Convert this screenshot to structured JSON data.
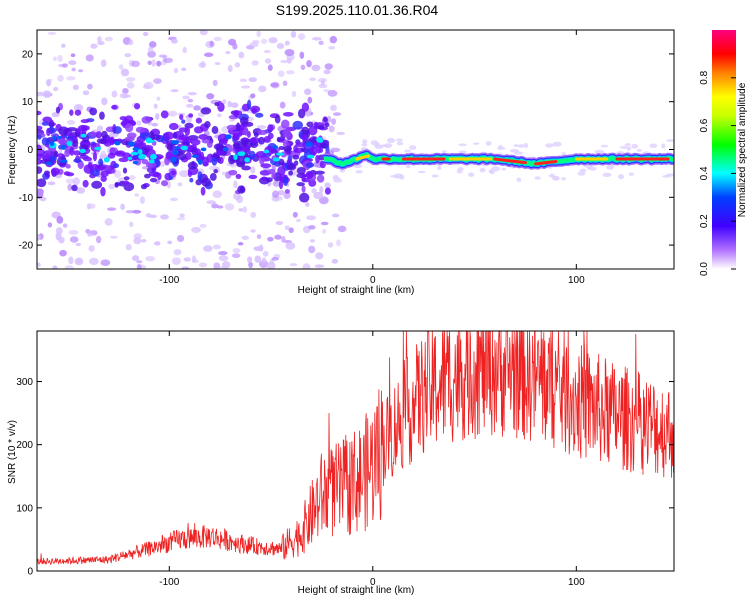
{
  "title": "S199.2025.110.01.36.R04",
  "chart_data": [
    {
      "type": "heatmap",
      "xlabel": "Height of straight line (km)",
      "ylabel": "Frequency (Hz)",
      "xlim": [
        -165,
        148
      ],
      "ylim": [
        -25,
        25
      ],
      "x_ticks": [
        -100,
        0,
        100
      ],
      "y_ticks": [
        -20,
        -10,
        0,
        10,
        20
      ],
      "colorbar": {
        "label": "Normalized spectral amplitude",
        "ticks": [
          0.0,
          0.2,
          0.4,
          0.6,
          0.8
        ],
        "range": [
          0,
          1
        ],
        "colors": [
          "#ffffff",
          "#8000ff",
          "#0000ff",
          "#00ffff",
          "#00ff00",
          "#ffff00",
          "#ff8000",
          "#ff0000",
          "#ff00a0"
        ]
      },
      "ridge": {
        "x": [
          -165,
          -100,
          -50,
          -22,
          -15,
          -8,
          -3,
          0,
          5,
          10,
          20,
          40,
          60,
          80,
          100,
          120,
          148
        ],
        "freq": [
          -1,
          -1,
          -1,
          -2,
          -3,
          -2,
          -1,
          -2,
          -2,
          -2,
          -2,
          -2,
          -2,
          -3,
          -2,
          -2,
          -2
        ]
      }
    },
    {
      "type": "line",
      "xlabel": "Height of straight line (km)",
      "ylabel": "SNR (10 * v/v)",
      "xlim": [
        -165,
        148
      ],
      "ylim": [
        0,
        380
      ],
      "x_ticks": [
        -100,
        0,
        100
      ],
      "y_ticks": [
        0,
        100,
        200,
        300
      ],
      "color": "#ee2222",
      "envelope": {
        "x": [
          -165,
          -130,
          -110,
          -95,
          -80,
          -60,
          -45,
          -35,
          -25,
          -15,
          -5,
          0,
          5,
          15,
          25,
          40,
          55,
          70,
          85,
          100,
          120,
          148
        ],
        "y": [
          15,
          18,
          35,
          50,
          55,
          40,
          35,
          60,
          120,
          130,
          150,
          170,
          200,
          245,
          280,
          310,
          325,
          320,
          300,
          270,
          245,
          220
        ]
      }
    }
  ]
}
